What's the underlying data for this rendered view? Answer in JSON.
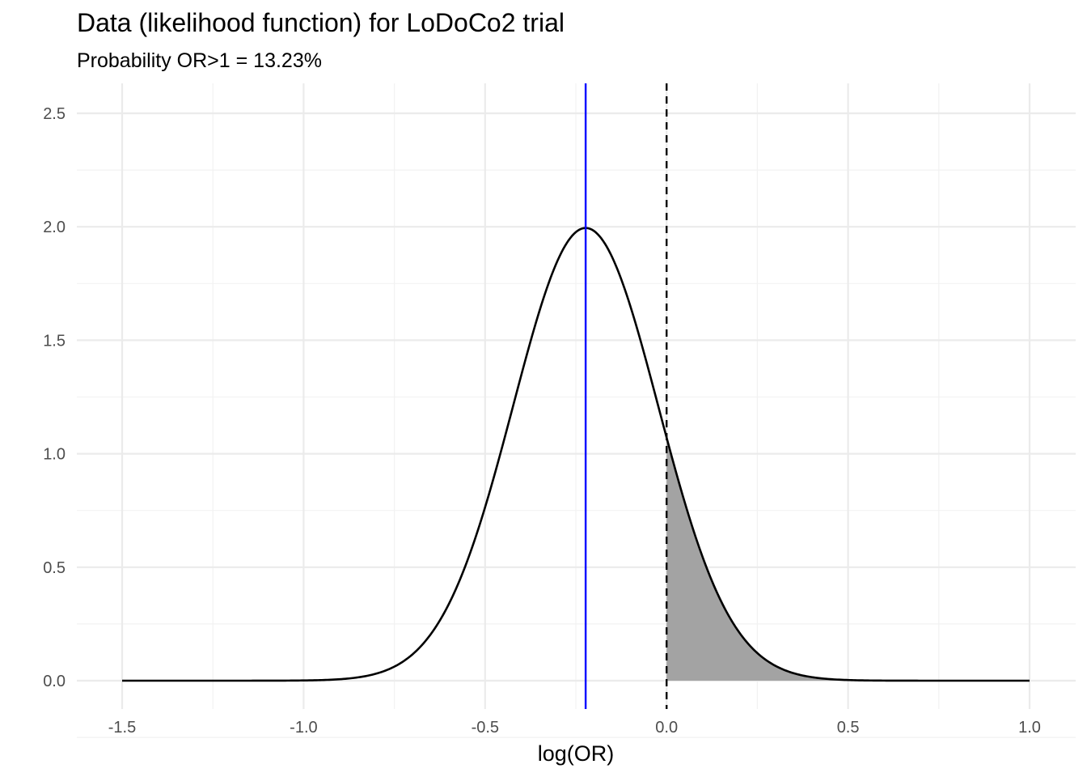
{
  "chart_data": {
    "type": "line",
    "title": "Data (likelihood function) for LoDoCo2 trial",
    "subtitle": "Probability OR>1 = 13.23%",
    "xlabel": "log(OR)",
    "ylabel": "",
    "xlim": [
      -1.5,
      1.0
    ],
    "ylim": [
      0,
      2.5
    ],
    "x_ticks": [
      -1.5,
      -1.0,
      -0.5,
      0.0,
      0.5,
      1.0
    ],
    "x_tick_labels": [
      "-1.5",
      "-1.0",
      "-0.5",
      "0.0",
      "0.5",
      "1.0"
    ],
    "y_ticks": [
      0.0,
      0.5,
      1.0,
      1.5,
      2.0,
      2.5
    ],
    "y_tick_labels": [
      "0.0",
      "0.5",
      "1.0",
      "1.5",
      "2.0",
      "2.5"
    ],
    "grid": true,
    "legend": "none",
    "density": {
      "distribution": "normal",
      "mean": -0.223,
      "sd": 0.2,
      "peak_density": 1.99
    },
    "shaded_region": {
      "from": 0.0,
      "to": 1.0,
      "probability": 0.1323
    },
    "reference_lines": [
      {
        "x": -0.223,
        "style": "solid",
        "color": "#0000ff"
      },
      {
        "x": 0.0,
        "style": "dashed",
        "color": "#000000"
      }
    ],
    "colors": {
      "curve": "#000000",
      "fill": "#a3a3a3",
      "mean_line": "#0000ff",
      "null_line": "#000000"
    }
  }
}
